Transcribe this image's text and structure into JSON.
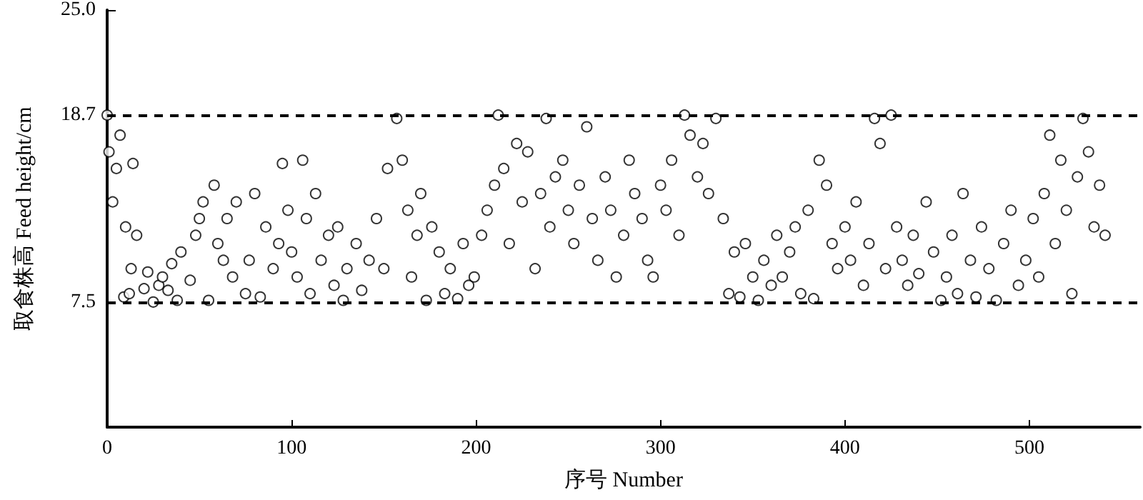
{
  "chart_data": {
    "type": "scatter",
    "xlabel": "序号 Number",
    "ylabel": "取食株高 Feed height/cm",
    "marker": "circle",
    "grid": false,
    "xlim": [
      0,
      560
    ],
    "xticks": [
      0,
      100,
      200,
      300,
      400,
      500
    ],
    "ylim": [
      0,
      25
    ],
    "yticks": [
      {
        "value": 7.5,
        "label": "7.5"
      },
      {
        "value": 18.7,
        "label": "18.7"
      },
      {
        "value": 25,
        "label": "25.0"
      }
    ],
    "ref_lines": [
      {
        "axis": "y",
        "value": 18.7,
        "line_style": "dashed",
        "color": "#000000"
      },
      {
        "axis": "y",
        "value": 7.5,
        "line_style": "dashed",
        "color": "#000000"
      }
    ],
    "series": [
      {
        "color": "#000000",
        "x": [
          0,
          1,
          3,
          5,
          7,
          9,
          10,
          12,
          13,
          14,
          16,
          20,
          22,
          25,
          28,
          30,
          33,
          35,
          38,
          40,
          45,
          48,
          50,
          52,
          55,
          58,
          60,
          63,
          65,
          68,
          70,
          75,
          77,
          80,
          83,
          86,
          90,
          93,
          95,
          98,
          100,
          103,
          106,
          108,
          110,
          113,
          116,
          120,
          123,
          125,
          128,
          130,
          135,
          138,
          142,
          146,
          150,
          152,
          157,
          160,
          163,
          165,
          168,
          170,
          173,
          176,
          180,
          183,
          186,
          190,
          193,
          196,
          199,
          203,
          206,
          210,
          212,
          215,
          218,
          222,
          225,
          228,
          232,
          235,
          238,
          240,
          243,
          247,
          250,
          253,
          256,
          260,
          263,
          266,
          270,
          273,
          276,
          280,
          283,
          286,
          290,
          293,
          296,
          300,
          303,
          306,
          310,
          313,
          316,
          320,
          323,
          326,
          330,
          334,
          337,
          340,
          343,
          346,
          350,
          353,
          356,
          360,
          363,
          366,
          370,
          373,
          376,
          380,
          383,
          386,
          390,
          393,
          396,
          400,
          403,
          406,
          410,
          413,
          416,
          419,
          422,
          425,
          428,
          431,
          434,
          437,
          440,
          444,
          448,
          452,
          455,
          458,
          461,
          464,
          468,
          471,
          474,
          478,
          482,
          486,
          490,
          494,
          498,
          502,
          505,
          508,
          511,
          514,
          517,
          520,
          523,
          526,
          529,
          532,
          535,
          538,
          541
        ],
        "values": [
          18.7,
          16.5,
          13.5,
          15.5,
          17.5,
          7.8,
          12,
          8,
          9.5,
          15.8,
          11.5,
          8.3,
          9.3,
          7.5,
          8.5,
          9,
          8.2,
          9.8,
          7.6,
          10.5,
          8.8,
          11.5,
          12.5,
          13.5,
          7.6,
          14.5,
          11,
          10,
          12.5,
          9,
          13.5,
          8,
          10,
          14,
          7.8,
          12,
          9.5,
          11,
          15.8,
          13,
          10.5,
          9,
          16,
          12.5,
          8,
          14,
          10,
          11.5,
          8.5,
          12,
          7.6,
          9.5,
          11,
          8.2,
          10,
          12.5,
          9.5,
          15.5,
          18.5,
          16,
          13,
          9,
          11.5,
          14,
          7.6,
          12,
          10.5,
          8,
          9.5,
          7.7,
          11,
          8.5,
          9,
          11.5,
          13,
          14.5,
          18.7,
          15.5,
          11,
          17,
          13.5,
          16.5,
          9.5,
          14,
          18.5,
          12,
          15,
          16,
          13,
          11,
          14.5,
          18,
          12.5,
          10,
          15,
          13,
          9,
          11.5,
          16,
          14,
          12.5,
          10,
          9,
          14.5,
          13,
          16,
          11.5,
          18.7,
          17.5,
          15,
          17,
          14,
          18.5,
          12.5,
          8,
          10.5,
          7.8,
          11,
          9,
          7.6,
          10,
          8.5,
          11.5,
          9,
          10.5,
          12,
          8,
          13,
          7.7,
          16,
          14.5,
          11,
          9.5,
          12,
          10,
          13.5,
          8.5,
          11,
          18.5,
          17,
          9.5,
          18.7,
          12,
          10,
          8.5,
          11.5,
          9.2,
          13.5,
          10.5,
          7.6,
          9,
          11.5,
          8,
          14,
          10,
          7.8,
          12,
          9.5,
          7.6,
          11,
          13,
          8.5,
          10,
          12.5,
          9,
          14,
          17.5,
          11,
          16,
          13,
          8,
          15,
          18.5,
          16.5,
          12,
          14.5,
          11.5
        ]
      }
    ]
  }
}
